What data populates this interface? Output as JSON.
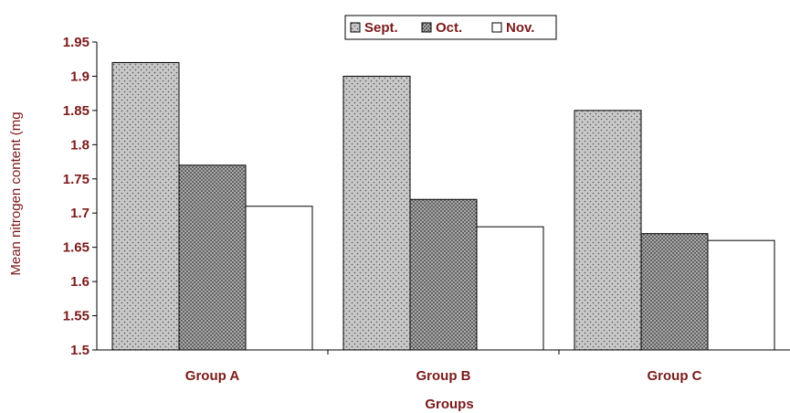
{
  "chart_data": {
    "type": "bar",
    "title": "",
    "xlabel": "Groups",
    "ylabel": "Mean nitrogen content (mg",
    "categories": [
      "Group A",
      "Group B",
      "Group C"
    ],
    "series": [
      {
        "name": "Sept.",
        "values": [
          1.92,
          1.9,
          1.85
        ]
      },
      {
        "name": "Oct.",
        "values": [
          1.77,
          1.72,
          1.67
        ]
      },
      {
        "name": "Nov.",
        "values": [
          1.71,
          1.68,
          1.66
        ]
      }
    ],
    "ylim": [
      1.5,
      1.95
    ],
    "yticks": [
      "1.5",
      "1.55",
      "1.6",
      "1.65",
      "1.7",
      "1.75",
      "1.8",
      "1.85",
      "1.9",
      "1.95"
    ],
    "grid": false,
    "legend_position": "top-center",
    "colors": {
      "text": "#7a1a1a",
      "sept_fill": "#c8c8c8",
      "oct_fill": "#9a9a9a",
      "nov_fill": "#ffffff",
      "border": "#000000"
    }
  }
}
